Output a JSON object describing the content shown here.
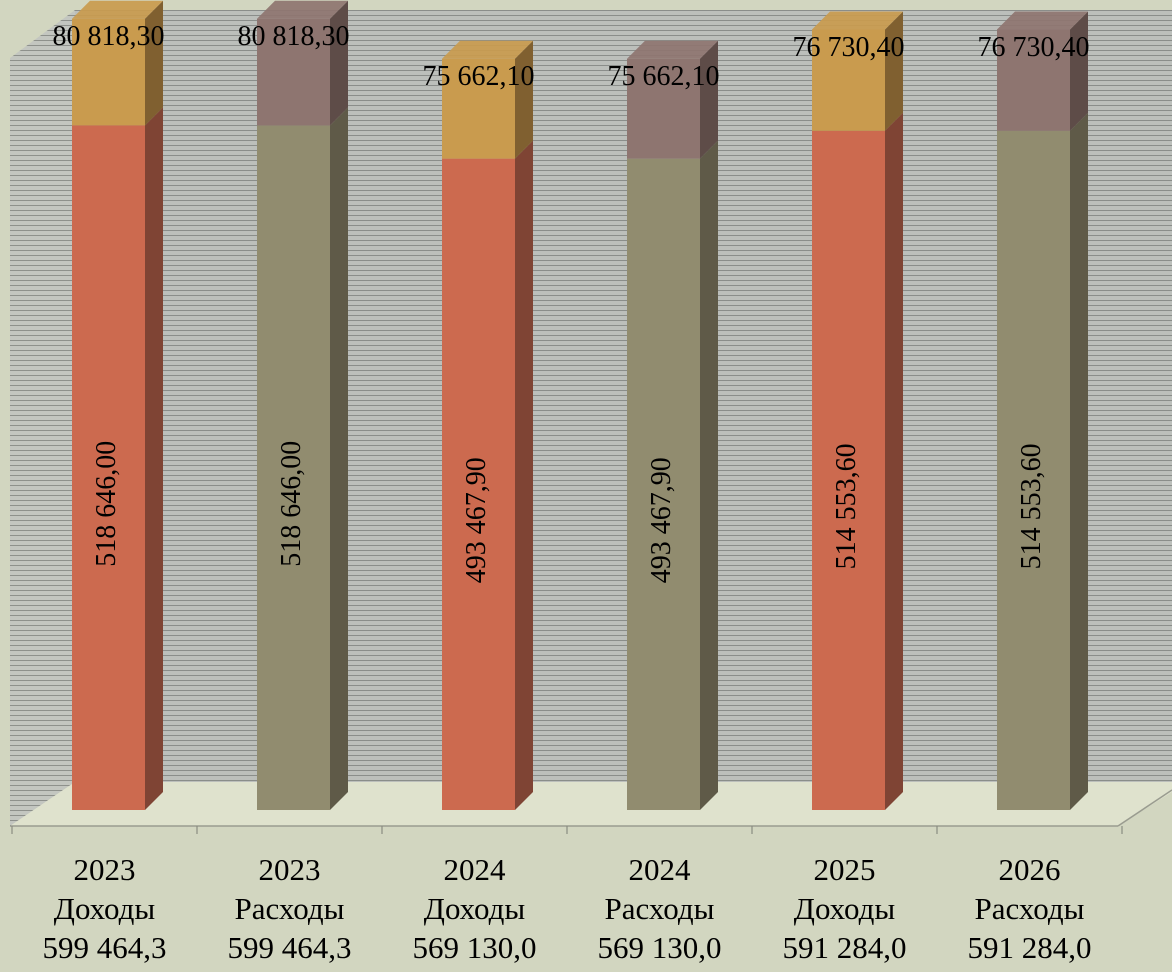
{
  "chart_data": {
    "type": "bar",
    "stacked": true,
    "three_d": true,
    "title": "",
    "xlabel": "",
    "ylabel": "",
    "grid": true,
    "legend": "none",
    "ylim": [
      0,
      610000
    ],
    "categories": [
      [
        "2023",
        "Доходы",
        "599 464,3"
      ],
      [
        "2023",
        "Расходы",
        "599 464,3"
      ],
      [
        "2024",
        "Доходы",
        "569 130,0"
      ],
      [
        "2024",
        "Расходы",
        "569 130,0"
      ],
      [
        "2025",
        "Доходы",
        "591 284,0"
      ],
      [
        "2026",
        "Расходы",
        "591 284,0"
      ]
    ],
    "series": [
      {
        "values": [
          518646.0,
          518646.0,
          493467.9,
          493467.9,
          514553.6,
          514553.6
        ],
        "labels": [
          "518 646,00",
          "518 646,00",
          "493 467,90",
          "493 467,90",
          "514 553,60",
          "514 553,60"
        ]
      },
      {
        "values": [
          80818.3,
          80818.3,
          75662.1,
          75662.1,
          76730.4,
          76730.4
        ],
        "labels": [
          "80 818,30",
          "80 818,30",
          "75 662,10",
          "75 662,10",
          "76 730,40",
          "76 730,40"
        ]
      }
    ],
    "colors": {
      "income_base": "#cc6a4f",
      "income_base_side": "#7f4434",
      "income_top": "#c99b4e",
      "income_top_side": "#806030",
      "expense_base": "#918c6f",
      "expense_base_side": "#5f5a48",
      "expense_top": "#8e7570",
      "expense_top_side": "#5e4c48",
      "wall": "#b6b8b4",
      "grid": "#8a8d8a",
      "floor": "#dfe2cd",
      "background": "#d2d6c0"
    }
  }
}
